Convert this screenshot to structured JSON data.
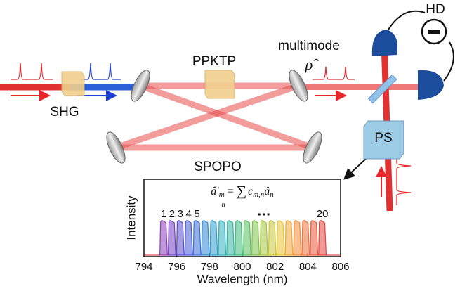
{
  "labels": {
    "hd": "HD",
    "multimode": "multimode",
    "rho": "ρ̂",
    "ppktp": "PPKTP",
    "shg": "SHG",
    "spopo": "SPOPO",
    "ps": "PS"
  },
  "inset": {
    "type": "spectrum",
    "formula": {
      "lhs": "â′",
      "lhs_sub": "m",
      "eq": "=",
      "sum": "∑",
      "sum_sub": "n",
      "c": "c",
      "c_sub": "m,n",
      "a": "â",
      "a_sub": "n"
    },
    "x_label": "Wavelength (nm)",
    "y_label": "Intensity",
    "xlim": [
      794,
      806
    ],
    "xticks": [
      794,
      796,
      798,
      800,
      802,
      804,
      806
    ],
    "band_width": 0.46,
    "bands": [
      795.2,
      795.71,
      796.22,
      796.73,
      797.24,
      797.75,
      798.26,
      798.77,
      799.28,
      799.79,
      800.3,
      800.81,
      801.32,
      801.83,
      802.34,
      802.85,
      803.36,
      803.87,
      804.38,
      804.89
    ],
    "mode_labels": [
      "1",
      "2",
      "3",
      "4",
      "5",
      null,
      null,
      null,
      null,
      null,
      null,
      null,
      "…",
      null,
      null,
      null,
      null,
      null,
      null,
      "20"
    ],
    "colors": [
      "#8b3fb8",
      "#7442c2",
      "#5c4ccc",
      "#4a5cd4",
      "#3c70d8",
      "#3386d6",
      "#2f9cd0",
      "#2fb0bf",
      "#34b8a0",
      "#3fbb7e",
      "#5abf5c",
      "#7ec24a",
      "#a6c63f",
      "#cbc93a",
      "#e8c437",
      "#f0a838",
      "#f08c3a",
      "#ec723c",
      "#e85a3e",
      "#e4463f"
    ]
  }
}
